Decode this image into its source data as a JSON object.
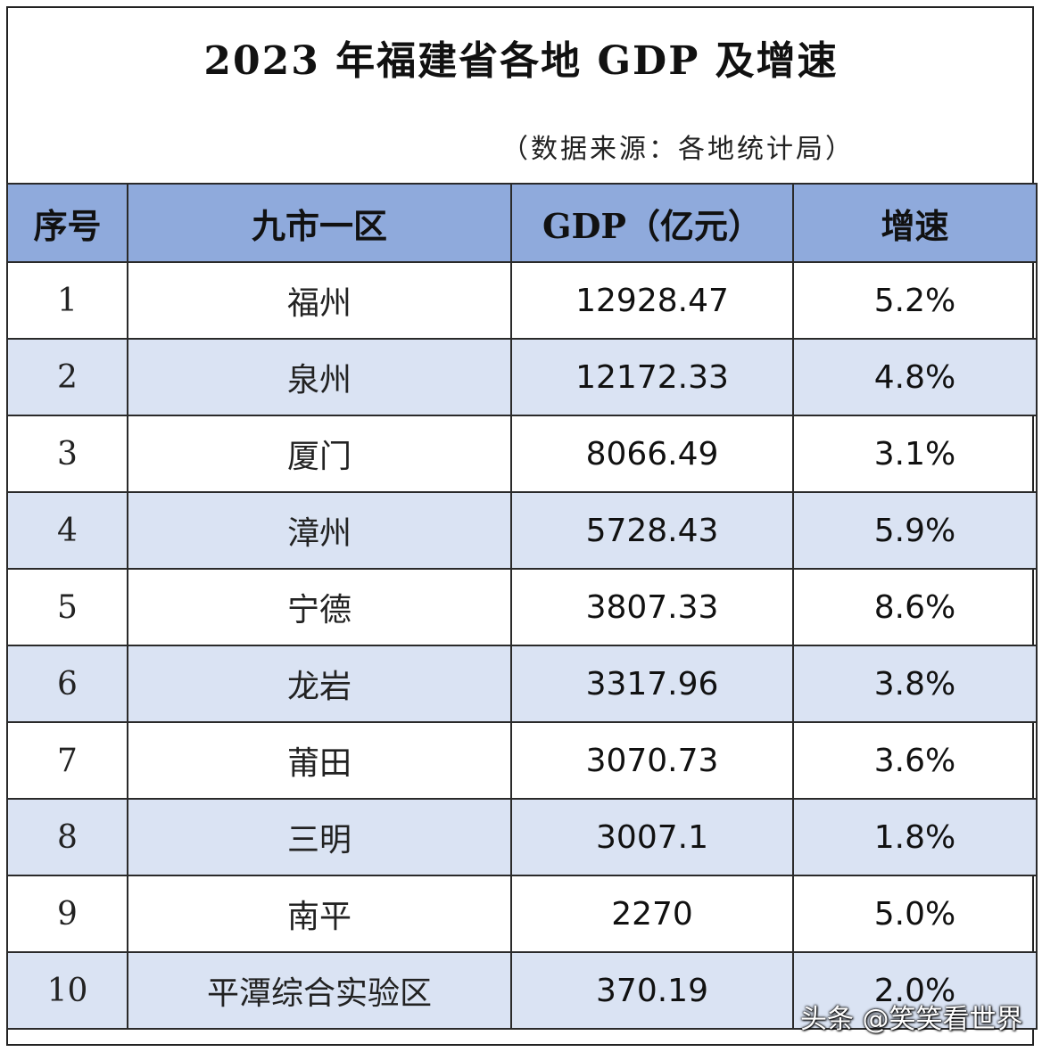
{
  "title": "2023 年福建省各地 GDP 及增速",
  "source": "（数据来源：各地统计局）",
  "headers": {
    "seq": "序号",
    "region": "九市一区",
    "gdp": "GDP（亿元）",
    "rate": "增速"
  },
  "rows": [
    {
      "seq": "1",
      "city": "福州",
      "gdp": "12928.47",
      "rate": "5.2%"
    },
    {
      "seq": "2",
      "city": "泉州",
      "gdp": "12172.33",
      "rate": "4.8%"
    },
    {
      "seq": "3",
      "city": "厦门",
      "gdp": "8066.49",
      "rate": "3.1%"
    },
    {
      "seq": "4",
      "city": "漳州",
      "gdp": "5728.43",
      "rate": "5.9%"
    },
    {
      "seq": "5",
      "city": "宁德",
      "gdp": "3807.33",
      "rate": "8.6%"
    },
    {
      "seq": "6",
      "city": "龙岩",
      "gdp": "3317.96",
      "rate": "3.8%"
    },
    {
      "seq": "7",
      "city": "莆田",
      "gdp": "3070.73",
      "rate": "3.6%"
    },
    {
      "seq": "8",
      "city": "三明",
      "gdp": "3007.1",
      "rate": "1.8%"
    },
    {
      "seq": "9",
      "city": "南平",
      "gdp": "2270",
      "rate": "5.0%"
    },
    {
      "seq": "10",
      "city": "平潭综合实验区",
      "gdp": "370.19",
      "rate": "2.0%"
    }
  ],
  "watermark": "头条 @笑笑看世界"
}
